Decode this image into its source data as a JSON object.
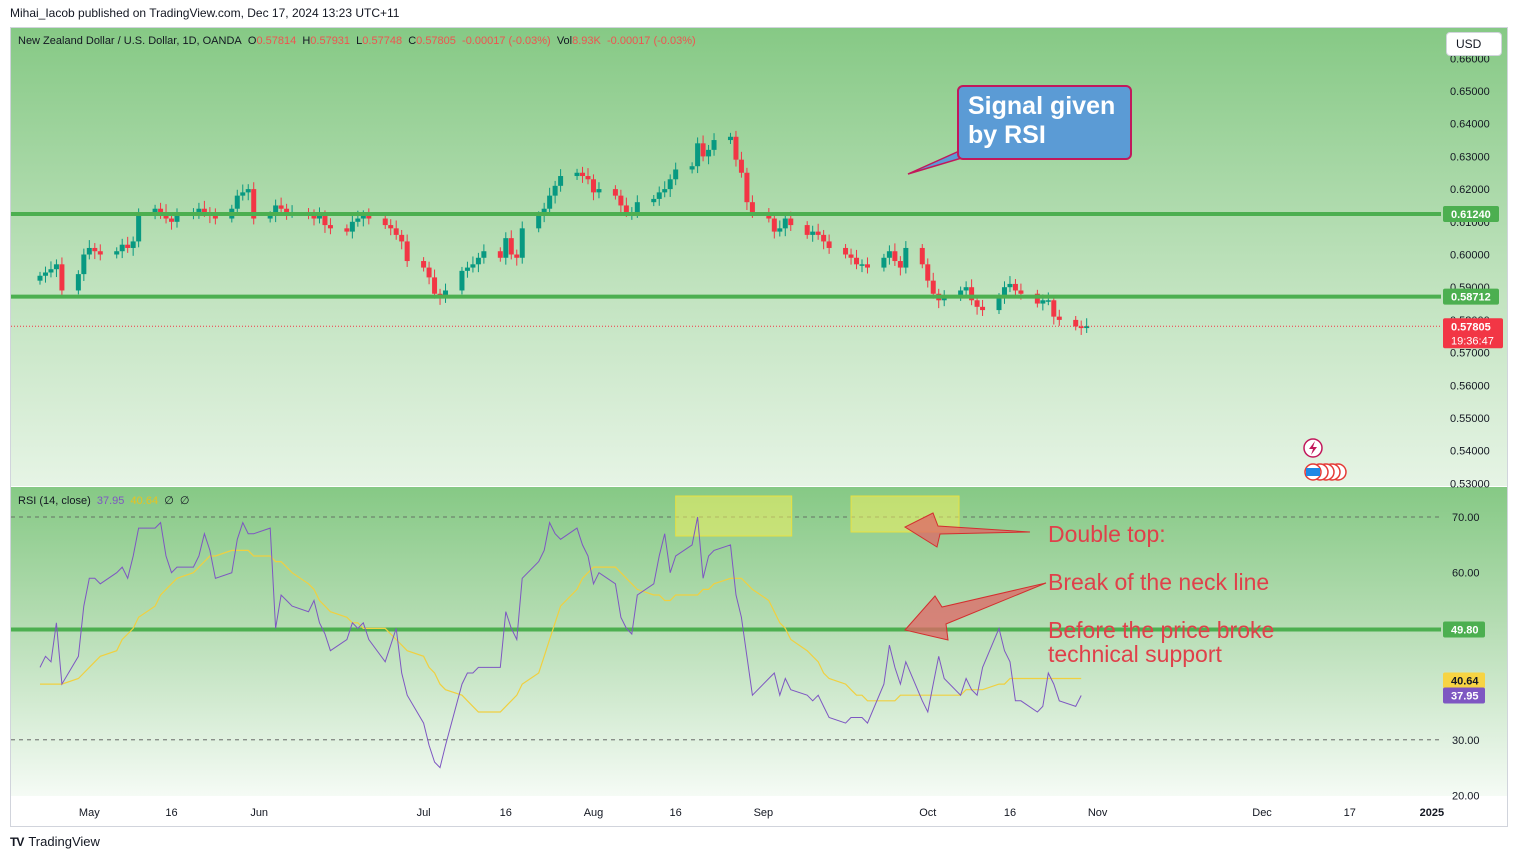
{
  "header": {
    "published": "Mihai_Iacob published on TradingView.com, Dec 17, 2024 13:23 UTC+11",
    "currency_button": "USD",
    "brand": "TradingView",
    "brand_logo_text": "TV"
  },
  "legend": {
    "symbol": "New Zealand Dollar / U.S. Dollar, 1D, OANDA",
    "o_label": "O",
    "o": "0.57814",
    "h_label": "H",
    "h": "0.57931",
    "l_label": "L",
    "l": "0.57748",
    "c_label": "C",
    "c": "0.57805",
    "change": "-0.00017 (-0.03%)",
    "vol_label": "Vol",
    "vol": "8.93K",
    "vol_change": "-0.00017 (-0.03%)"
  },
  "rsi_legend": {
    "name": "RSI (14, close)",
    "rsi": "37.95",
    "ma": "40.64",
    "extra1": "∅",
    "extra2": "∅"
  },
  "annotations": {
    "callout_line1": "Signal given",
    "callout_line2": "by RSI",
    "double_top": "Double top:",
    "neck": "Break of the neck line",
    "before1": "Before the price broke",
    "before2": "technical support"
  },
  "colors": {
    "up": "#089981",
    "down": "#f23645",
    "level_line": "#4caf50",
    "rsi_line": "#7e57c2",
    "rsi_ma": "#f0d040",
    "highlight": "#f0f060",
    "arrow": "#e06666"
  },
  "chart_data": [
    {
      "type": "candlestick",
      "symbol": "NZDUSD",
      "ylim": [
        0.53,
        0.66
      ],
      "y_ticks": [
        "0.53000",
        "0.54000",
        "0.55000",
        "0.56000",
        "0.57000",
        "0.58000",
        "0.59000",
        "0.60000",
        "0.61000",
        "0.62000",
        "0.63000",
        "0.64000",
        "0.65000",
        "0.66000"
      ],
      "x_ticks": [
        {
          "label": "May",
          "date": "2024-05-01"
        },
        {
          "label": "16",
          "date": "2024-05-16"
        },
        {
          "label": "Jun",
          "date": "2024-06-01"
        },
        {
          "label": "Jul",
          "date": "2024-07-01"
        },
        {
          "label": "16",
          "date": "2024-07-16"
        },
        {
          "label": "Aug",
          "date": "2024-08-01"
        },
        {
          "label": "16",
          "date": "2024-08-16"
        },
        {
          "label": "Sep",
          "date": "2024-09-01"
        },
        {
          "label": "Oct",
          "date": "2024-10-01"
        },
        {
          "label": "16",
          "date": "2024-10-16"
        },
        {
          "label": "Nov",
          "date": "2024-11-01"
        },
        {
          "label": "Dec",
          "date": "2024-12-01"
        },
        {
          "label": "17",
          "date": "2024-12-17"
        },
        {
          "label": "2025",
          "date": "2025-01-01"
        }
      ],
      "start_date": "2024-04-22",
      "closes": [
        0.5935,
        0.5945,
        0.5955,
        0.597,
        0.589,
        0.594,
        0.6,
        0.602,
        0.601,
        0.6,
        0.601,
        0.603,
        0.602,
        0.604,
        0.612,
        0.614,
        0.613,
        0.611,
        0.61,
        0.612,
        0.613,
        0.614,
        0.613,
        0.612,
        0.611,
        0.614,
        0.618,
        0.619,
        0.62,
        0.611,
        0.612,
        0.615,
        0.614,
        0.613,
        0.613,
        0.612,
        0.611,
        0.612,
        0.609,
        0.608,
        0.607,
        0.61,
        0.611,
        0.612,
        0.611,
        0.609,
        0.608,
        0.606,
        0.604,
        0.598,
        0.596,
        0.593,
        0.588,
        0.587,
        0.589,
        0.595,
        0.596,
        0.597,
        0.599,
        0.601,
        0.599,
        0.605,
        0.6,
        0.599,
        0.608,
        0.612,
        0.614,
        0.618,
        0.621,
        0.624,
        0.625,
        0.624,
        0.623,
        0.619,
        0.62,
        0.618,
        0.615,
        0.613,
        0.613,
        0.616,
        0.617,
        0.619,
        0.62,
        0.623,
        0.626,
        0.627,
        0.634,
        0.63,
        0.632,
        0.635,
        0.636,
        0.629,
        0.625,
        0.616,
        0.613,
        0.611,
        0.607,
        0.608,
        0.611,
        0.609,
        0.606,
        0.607,
        0.606,
        0.604,
        0.602,
        0.6,
        0.599,
        0.597,
        0.597,
        0.596,
        0.599,
        0.601,
        0.598,
        0.596,
        0.602,
        0.597,
        0.592,
        0.588,
        0.586,
        0.587,
        0.589,
        0.59,
        0.586,
        0.584,
        0.583,
        0.587,
        0.59,
        0.591,
        0.589,
        0.588,
        0.585,
        0.586,
        0.586,
        0.581,
        0.58,
        0.578,
        0.5775,
        0.5781
      ],
      "levels": [
        {
          "label": "0.61240",
          "value": 0.6124
        },
        {
          "label": "0.58712",
          "value": 0.58712
        }
      ],
      "last_price": {
        "label": "0.57805",
        "value": 0.57805,
        "countdown": "19:36:47"
      }
    },
    {
      "type": "line",
      "name": "RSI (14, close)",
      "ylim": [
        20,
        70
      ],
      "y_ticks": [
        "20.00",
        "30.00",
        "60.00",
        "70.00"
      ],
      "bands": [
        30,
        70
      ],
      "level": {
        "label": "49.80",
        "value": 49.8
      },
      "rsi_last": {
        "label": "37.95",
        "value": 37.95
      },
      "ma_last": {
        "label": "40.64",
        "value": 40.64
      },
      "rsi": [
        43,
        45,
        44,
        51,
        40,
        45,
        54,
        59,
        59,
        58,
        60,
        61,
        59,
        63,
        68,
        68,
        69,
        63,
        60,
        61,
        61,
        63,
        67,
        64,
        59,
        60,
        66,
        69,
        67,
        67,
        68,
        50,
        56,
        55,
        54,
        53,
        55,
        51,
        49,
        46,
        48,
        51,
        50,
        51,
        48,
        44,
        47,
        50,
        42,
        38,
        33,
        29,
        26,
        25,
        29,
        40,
        42,
        42,
        43,
        43,
        43,
        53,
        50,
        48,
        59,
        62,
        64,
        69,
        67,
        66,
        68,
        65,
        63,
        58,
        60,
        58,
        52,
        50,
        49,
        56,
        58,
        63,
        67,
        60,
        63,
        65,
        70,
        59,
        63,
        64,
        65,
        56,
        52,
        45,
        38,
        41,
        42,
        38,
        41,
        39,
        38,
        37,
        38,
        36,
        34,
        33,
        34,
        34,
        34,
        33,
        40,
        47,
        43,
        40,
        44,
        37,
        35,
        40,
        45,
        41,
        38,
        41,
        39,
        38,
        43,
        50,
        46,
        44,
        37,
        37,
        35,
        36,
        42,
        40,
        37,
        36,
        37.95
      ],
      "ma": [
        40,
        40,
        40,
        40,
        40,
        41,
        42,
        43,
        44,
        45,
        46,
        48,
        49,
        50,
        52,
        54,
        56,
        57,
        58,
        59,
        60,
        61,
        62,
        63,
        63,
        64,
        64,
        64,
        64,
        63,
        63,
        62,
        62,
        61,
        60,
        58,
        57,
        55,
        54,
        53,
        52,
        51,
        51,
        50,
        50,
        50,
        49,
        48,
        47,
        46,
        45,
        43,
        42,
        40,
        39,
        38,
        37,
        36,
        35,
        35,
        35,
        36,
        37,
        38,
        40,
        42,
        45,
        48,
        51,
        54,
        57,
        59,
        60,
        61,
        61,
        61,
        60,
        59,
        58,
        57,
        56,
        56,
        55,
        55,
        56,
        56,
        56,
        57,
        57,
        58,
        59,
        59,
        59,
        58,
        57,
        55,
        53,
        51,
        50,
        48,
        46,
        45,
        44,
        42,
        41,
        40,
        39,
        38,
        38,
        37,
        37,
        37,
        37,
        38,
        38,
        38,
        38,
        38,
        38,
        38,
        38,
        39,
        39,
        39,
        39,
        40,
        40,
        41,
        41,
        41,
        41,
        41,
        41,
        41,
        41,
        41,
        41
      ]
    }
  ]
}
